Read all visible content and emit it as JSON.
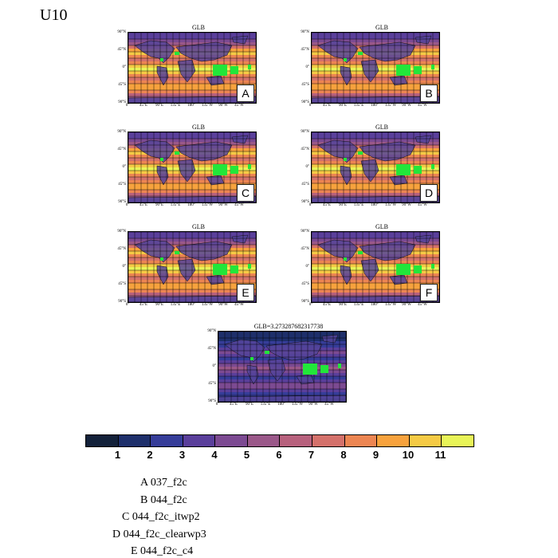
{
  "title": "U10",
  "panels": [
    {
      "title": "GLB",
      "letter": "A"
    },
    {
      "title": "GLB",
      "letter": "B"
    },
    {
      "title": "GLB",
      "letter": "C"
    },
    {
      "title": "GLB",
      "letter": "D"
    },
    {
      "title": "GLB",
      "letter": "E"
    },
    {
      "title": "GLB",
      "letter": "F"
    },
    {
      "title": "GLB=3.273287682317738",
      "letter": ""
    }
  ],
  "lat_labels": [
    "90°N",
    "45°N",
    "0°",
    "45°S",
    "90°S"
  ],
  "lon_labels": [
    "0°",
    "45°E",
    "90°E",
    "135°E",
    "180°",
    "135°W",
    "90°W",
    "45°W"
  ],
  "colorbar": {
    "colors": [
      "#13213a",
      "#1e2f6b",
      "#363d99",
      "#5a3f9b",
      "#7c4a92",
      "#9a5889",
      "#b7617d",
      "#d4716b",
      "#ec8552",
      "#f7a23d",
      "#f5ca45",
      "#e8f458"
    ],
    "labels": [
      "1",
      "2",
      "3",
      "4",
      "5",
      "6",
      "7",
      "8",
      "9",
      "10",
      "11"
    ]
  },
  "legend": [
    "A  037_f2c",
    "B  044_f2c",
    "C  044_f2c_itwp2",
    "D  044_f2c_clearwp3",
    "E  044_f2c_c4"
  ]
}
